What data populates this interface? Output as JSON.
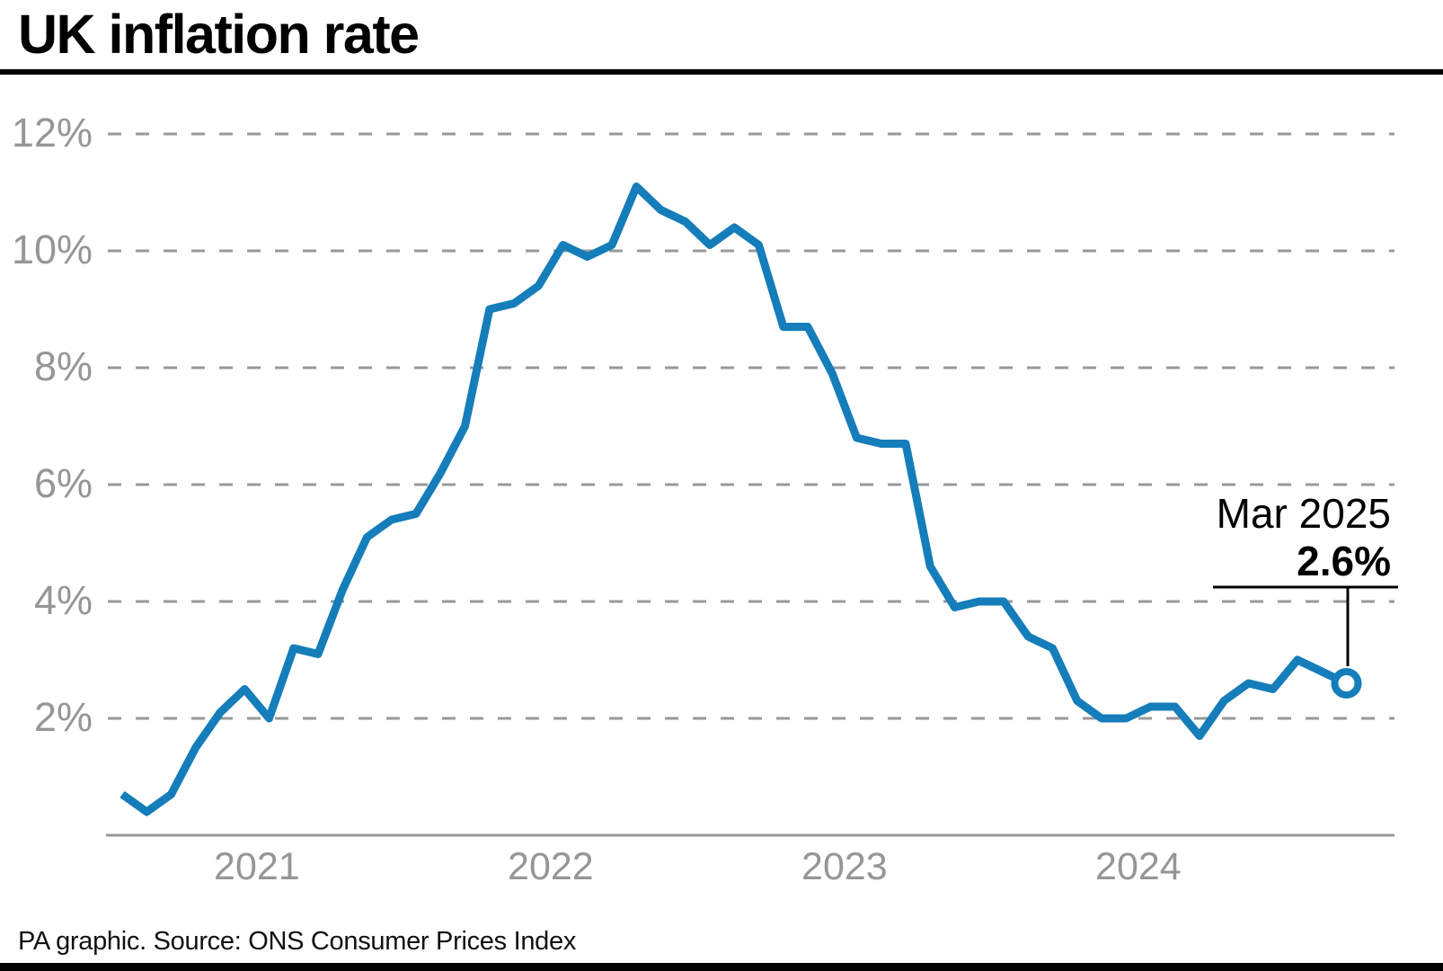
{
  "header": {
    "title": "UK inflation rate"
  },
  "footer": {
    "credit": "PA graphic. Source: ONS Consumer Prices Index"
  },
  "colors": {
    "line": "#157dba",
    "grid": "#999999",
    "tick_label": "#969696",
    "annotation": "#000000",
    "marker_fill": "#ffffff",
    "rules": "#000000"
  },
  "chart_data": {
    "type": "line",
    "title": "UK inflation rate",
    "series_name": "UK CPI annual inflation rate",
    "unit": "%",
    "x": [
      "Jan 2021",
      "Feb 2021",
      "Mar 2021",
      "Apr 2021",
      "May 2021",
      "Jun 2021",
      "Jul 2021",
      "Aug 2021",
      "Sep 2021",
      "Oct 2021",
      "Nov 2021",
      "Dec 2021",
      "Jan 2022",
      "Feb 2022",
      "Mar 2022",
      "Apr 2022",
      "May 2022",
      "Jun 2022",
      "Jul 2022",
      "Aug 2022",
      "Sep 2022",
      "Oct 2022",
      "Nov 2022",
      "Dec 2022",
      "Jan 2023",
      "Feb 2023",
      "Mar 2023",
      "Apr 2023",
      "May 2023",
      "Jun 2023",
      "Jul 2023",
      "Aug 2023",
      "Sep 2023",
      "Oct 2023",
      "Nov 2023",
      "Dec 2023",
      "Jan 2024",
      "Feb 2024",
      "Mar 2024",
      "Apr 2024",
      "May 2024",
      "Jun 2024",
      "Jul 2024",
      "Aug 2024",
      "Sep 2024",
      "Oct 2024",
      "Nov 2024",
      "Dec 2024",
      "Jan 2025",
      "Feb 2025",
      "Mar 2025"
    ],
    "values": [
      0.7,
      0.4,
      0.7,
      1.5,
      2.1,
      2.5,
      2.0,
      3.2,
      3.1,
      4.2,
      5.1,
      5.4,
      5.5,
      6.2,
      7.0,
      9.0,
      9.1,
      9.4,
      10.1,
      9.9,
      10.1,
      11.1,
      10.7,
      10.5,
      10.1,
      10.4,
      10.1,
      8.7,
      8.7,
      7.9,
      6.8,
      6.7,
      6.7,
      4.6,
      3.9,
      4.0,
      4.0,
      3.4,
      3.2,
      2.3,
      2.0,
      2.0,
      2.2,
      2.2,
      1.7,
      2.3,
      2.6,
      2.5,
      3.0,
      2.8,
      2.6
    ],
    "ylim": [
      0,
      12.6
    ],
    "y_ticks": [
      {
        "value": 12,
        "label": "12%"
      },
      {
        "value": 10,
        "label": "10%"
      },
      {
        "value": 8,
        "label": "8%"
      },
      {
        "value": 6,
        "label": "6%"
      },
      {
        "value": 4,
        "label": "4%"
      },
      {
        "value": 2,
        "label": "2%"
      }
    ],
    "x_tick_labels": [
      "2021",
      "2022",
      "2023",
      "2024"
    ],
    "grid": "horizontal-dashed",
    "legend": "none",
    "annotation": {
      "label": "Mar 2025",
      "value": "2.6%"
    }
  }
}
